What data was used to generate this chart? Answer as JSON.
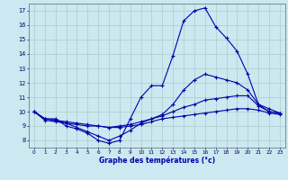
{
  "xlabel": "Graphe des températures (°c)",
  "x_hours": [
    0,
    1,
    2,
    3,
    4,
    5,
    6,
    7,
    8,
    9,
    10,
    11,
    12,
    13,
    14,
    15,
    16,
    17,
    18,
    19,
    20,
    21,
    22,
    23
  ],
  "inst_temp": [
    10.0,
    9.5,
    9.5,
    9.0,
    8.8,
    8.5,
    8.0,
    7.8,
    8.0,
    9.5,
    11.0,
    11.8,
    11.8,
    13.9,
    16.3,
    17.0,
    17.2,
    15.9,
    15.1,
    14.2,
    12.6,
    10.5,
    10.2,
    9.9
  ],
  "line2": [
    10.0,
    9.5,
    9.4,
    9.2,
    8.9,
    8.6,
    8.3,
    8.0,
    8.3,
    8.7,
    9.2,
    9.5,
    9.8,
    10.5,
    11.5,
    12.2,
    12.6,
    12.4,
    12.2,
    12.0,
    11.5,
    10.5,
    10.0,
    9.9
  ],
  "line3": [
    10.0,
    9.5,
    9.4,
    9.3,
    9.2,
    9.1,
    9.0,
    8.9,
    9.0,
    9.1,
    9.3,
    9.5,
    9.7,
    10.0,
    10.3,
    10.5,
    10.8,
    10.9,
    11.0,
    11.1,
    11.1,
    10.4,
    10.0,
    9.9
  ],
  "line4": [
    10.0,
    9.4,
    9.3,
    9.2,
    9.1,
    9.0,
    9.0,
    8.9,
    8.9,
    9.0,
    9.1,
    9.3,
    9.5,
    9.6,
    9.7,
    9.8,
    9.9,
    10.0,
    10.1,
    10.2,
    10.2,
    10.1,
    9.9,
    9.8
  ],
  "ylim": [
    7.5,
    17.5
  ],
  "yticks": [
    8,
    9,
    10,
    11,
    12,
    13,
    14,
    15,
    16,
    17
  ],
  "xlim": [
    -0.5,
    23.5
  ],
  "bg_color": "#cce8f0",
  "grid_color": "#aacccc",
  "line_color": "#0000aa"
}
